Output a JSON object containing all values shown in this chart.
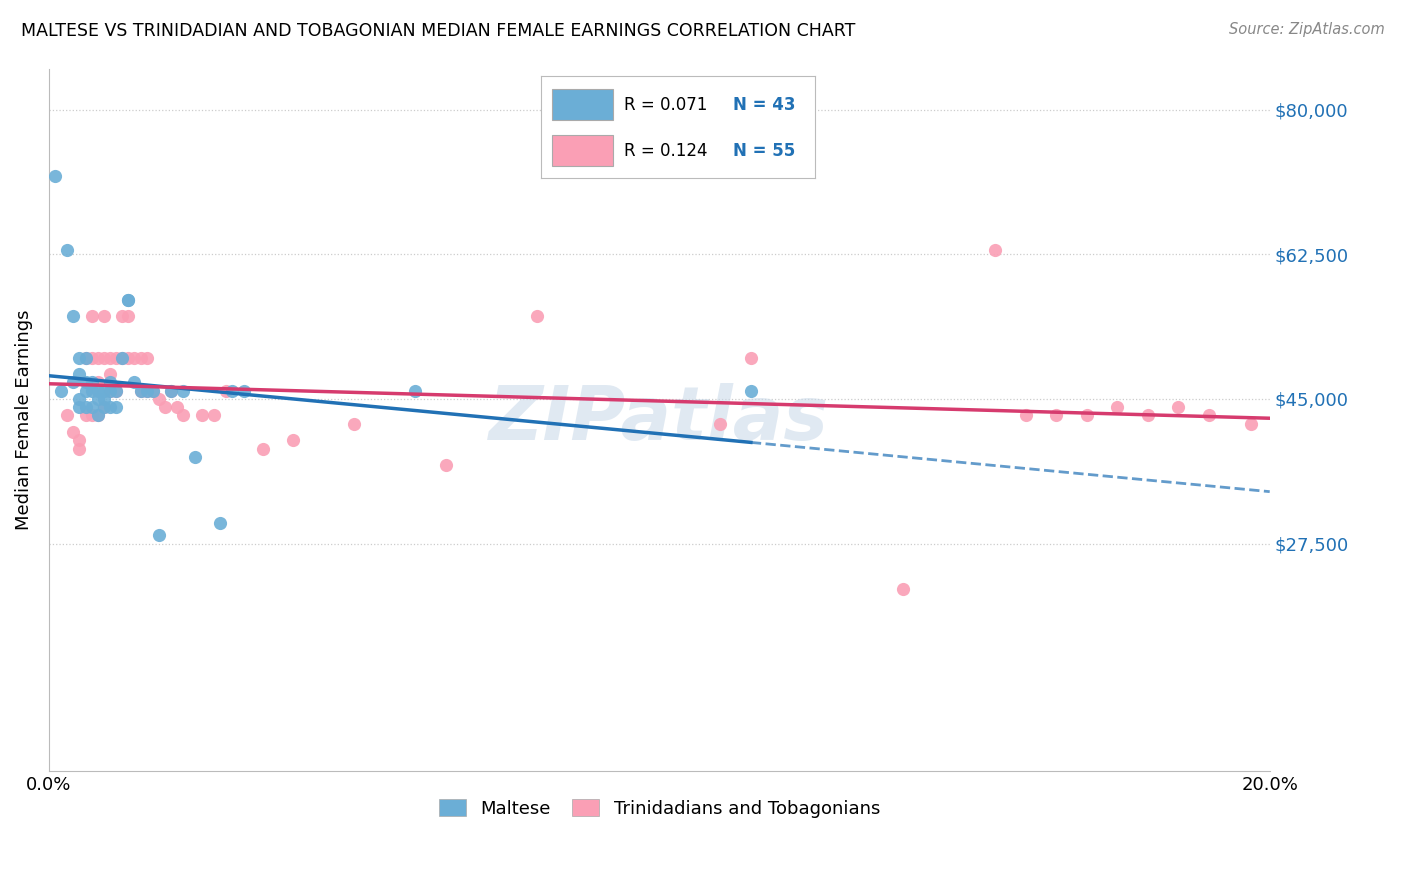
{
  "title": "MALTESE VS TRINIDADIAN AND TOBAGONIAN MEDIAN FEMALE EARNINGS CORRELATION CHART",
  "source": "Source: ZipAtlas.com",
  "ylabel": "Median Female Earnings",
  "xlim": [
    0.0,
    0.2
  ],
  "ylim": [
    0,
    85000
  ],
  "yticks": [
    27500,
    45000,
    62500,
    80000
  ],
  "ytick_labels": [
    "$27,500",
    "$45,000",
    "$62,500",
    "$80,000"
  ],
  "xticks": [
    0.0,
    0.04,
    0.08,
    0.12,
    0.16,
    0.2
  ],
  "xtick_labels": [
    "0.0%",
    "",
    "",
    "",
    "",
    "20.0%"
  ],
  "watermark": "ZIPatlas",
  "blue_color": "#6baed6",
  "pink_color": "#fa9fb5",
  "trendline_blue": "#2171b5",
  "trendline_pink": "#d63b6e",
  "maltese_x": [
    0.001,
    0.002,
    0.003,
    0.004,
    0.004,
    0.005,
    0.005,
    0.005,
    0.005,
    0.006,
    0.006,
    0.006,
    0.006,
    0.007,
    0.007,
    0.007,
    0.008,
    0.008,
    0.008,
    0.009,
    0.009,
    0.009,
    0.01,
    0.01,
    0.01,
    0.011,
    0.011,
    0.012,
    0.013,
    0.013,
    0.014,
    0.015,
    0.016,
    0.017,
    0.018,
    0.02,
    0.022,
    0.024,
    0.028,
    0.03,
    0.032,
    0.06,
    0.115
  ],
  "maltese_y": [
    72000,
    46000,
    63000,
    55000,
    47000,
    50000,
    48000,
    45000,
    44000,
    50000,
    47000,
    46000,
    44000,
    47000,
    46000,
    44000,
    46000,
    45000,
    43000,
    46000,
    45000,
    44000,
    47000,
    46000,
    44000,
    46000,
    44000,
    50000,
    57000,
    57000,
    47000,
    46000,
    46000,
    46000,
    28500,
    46000,
    46000,
    38000,
    30000,
    46000,
    46000,
    46000,
    46000
  ],
  "trini_x": [
    0.003,
    0.004,
    0.005,
    0.005,
    0.006,
    0.006,
    0.007,
    0.007,
    0.007,
    0.008,
    0.008,
    0.008,
    0.009,
    0.009,
    0.009,
    0.01,
    0.01,
    0.01,
    0.011,
    0.011,
    0.012,
    0.012,
    0.013,
    0.013,
    0.014,
    0.015,
    0.015,
    0.016,
    0.016,
    0.017,
    0.018,
    0.019,
    0.02,
    0.021,
    0.022,
    0.025,
    0.027,
    0.029,
    0.035,
    0.04,
    0.05,
    0.065,
    0.08,
    0.11,
    0.115,
    0.14,
    0.155,
    0.16,
    0.165,
    0.17,
    0.175,
    0.18,
    0.185,
    0.19,
    0.197
  ],
  "trini_y": [
    43000,
    41000,
    40000,
    39000,
    50000,
    43000,
    55000,
    50000,
    43000,
    50000,
    47000,
    43000,
    55000,
    50000,
    44000,
    50000,
    48000,
    46000,
    50000,
    46000,
    55000,
    50000,
    55000,
    50000,
    50000,
    50000,
    46000,
    50000,
    46000,
    46000,
    45000,
    44000,
    46000,
    44000,
    43000,
    43000,
    43000,
    46000,
    39000,
    40000,
    42000,
    37000,
    55000,
    42000,
    50000,
    22000,
    63000,
    43000,
    43000,
    43000,
    44000,
    43000,
    44000,
    43000,
    42000
  ]
}
